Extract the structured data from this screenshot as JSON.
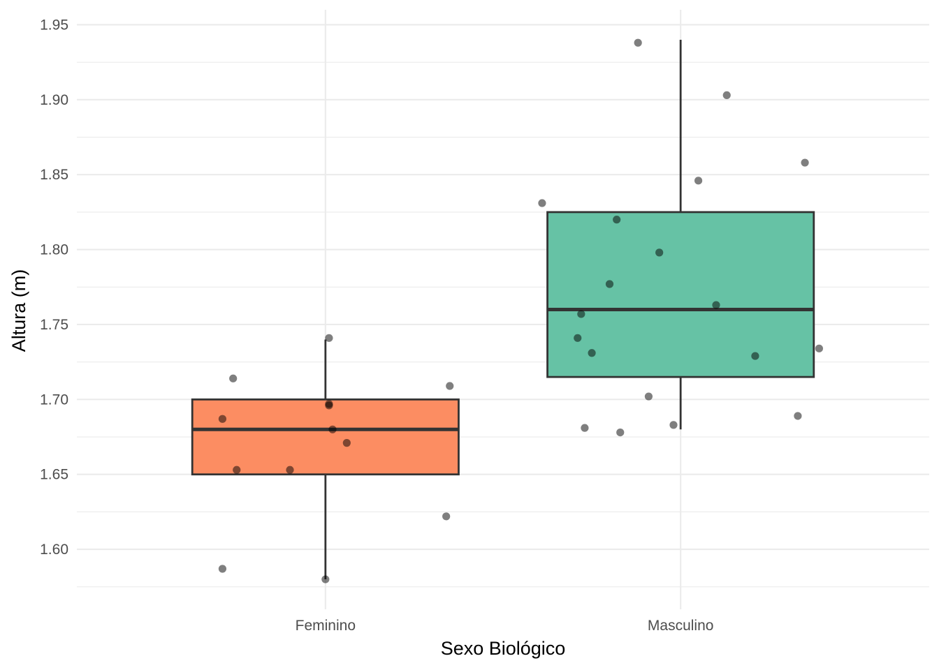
{
  "chart_data": {
    "type": "boxplot",
    "title": "",
    "xlabel": "Sexo Biológico",
    "ylabel": "Altura (m)",
    "ylim": [
      1.56,
      1.96
    ],
    "y_ticks": [
      "1.60",
      "1.65",
      "1.70",
      "1.75",
      "1.80",
      "1.85",
      "1.90",
      "1.95"
    ],
    "y_tick_values": [
      1.6,
      1.65,
      1.7,
      1.75,
      1.8,
      1.85,
      1.9,
      1.95
    ],
    "y_minor_values": [
      1.575,
      1.625,
      1.675,
      1.725,
      1.775,
      1.825,
      1.875,
      1.925
    ],
    "categories": [
      "Feminino",
      "Masculino"
    ],
    "grid": true,
    "legend": "none",
    "box_width": 0.75,
    "point_jitter": 0.4,
    "boxes": [
      {
        "category": "Feminino",
        "fill": "#fc8d62",
        "min": 1.58,
        "q1": 1.65,
        "median": 1.68,
        "q3": 1.7,
        "max": 1.74
      },
      {
        "category": "Masculino",
        "fill": "#66c2a5",
        "min": 1.68,
        "q1": 1.715,
        "median": 1.76,
        "q3": 1.825,
        "max": 1.94
      }
    ],
    "points": [
      {
        "group": "Feminino",
        "y": 1.741,
        "jitter": 0.01
      },
      {
        "group": "Feminino",
        "y": 1.714,
        "jitter": -0.26
      },
      {
        "group": "Feminino",
        "y": 1.709,
        "jitter": 0.35
      },
      {
        "group": "Feminino",
        "y": 1.697,
        "jitter": 0.01
      },
      {
        "group": "Feminino",
        "y": 1.696,
        "jitter": 0.01
      },
      {
        "group": "Feminino",
        "y": 1.687,
        "jitter": -0.29
      },
      {
        "group": "Feminino",
        "y": 1.68,
        "jitter": 0.02
      },
      {
        "group": "Feminino",
        "y": 1.671,
        "jitter": 0.06
      },
      {
        "group": "Feminino",
        "y": 1.653,
        "jitter": -0.25
      },
      {
        "group": "Feminino",
        "y": 1.653,
        "jitter": -0.1
      },
      {
        "group": "Feminino",
        "y": 1.622,
        "jitter": 0.34
      },
      {
        "group": "Feminino",
        "y": 1.587,
        "jitter": -0.29
      },
      {
        "group": "Feminino",
        "y": 1.58,
        "jitter": 0.0
      },
      {
        "group": "Masculino",
        "y": 1.938,
        "jitter": -0.12
      },
      {
        "group": "Masculino",
        "y": 1.903,
        "jitter": 0.13
      },
      {
        "group": "Masculino",
        "y": 1.858,
        "jitter": 0.35
      },
      {
        "group": "Masculino",
        "y": 1.846,
        "jitter": 0.05
      },
      {
        "group": "Masculino",
        "y": 1.831,
        "jitter": -0.39
      },
      {
        "group": "Masculino",
        "y": 1.82,
        "jitter": -0.18
      },
      {
        "group": "Masculino",
        "y": 1.798,
        "jitter": -0.06
      },
      {
        "group": "Masculino",
        "y": 1.777,
        "jitter": -0.2
      },
      {
        "group": "Masculino",
        "y": 1.763,
        "jitter": 0.1
      },
      {
        "group": "Masculino",
        "y": 1.757,
        "jitter": -0.28
      },
      {
        "group": "Masculino",
        "y": 1.741,
        "jitter": -0.29
      },
      {
        "group": "Masculino",
        "y": 1.734,
        "jitter": 0.39
      },
      {
        "group": "Masculino",
        "y": 1.731,
        "jitter": -0.25
      },
      {
        "group": "Masculino",
        "y": 1.729,
        "jitter": 0.21
      },
      {
        "group": "Masculino",
        "y": 1.702,
        "jitter": -0.09
      },
      {
        "group": "Masculino",
        "y": 1.689,
        "jitter": 0.33
      },
      {
        "group": "Masculino",
        "y": 1.683,
        "jitter": -0.02
      },
      {
        "group": "Masculino",
        "y": 1.681,
        "jitter": -0.27
      },
      {
        "group": "Masculino",
        "y": 1.678,
        "jitter": -0.17
      }
    ]
  }
}
